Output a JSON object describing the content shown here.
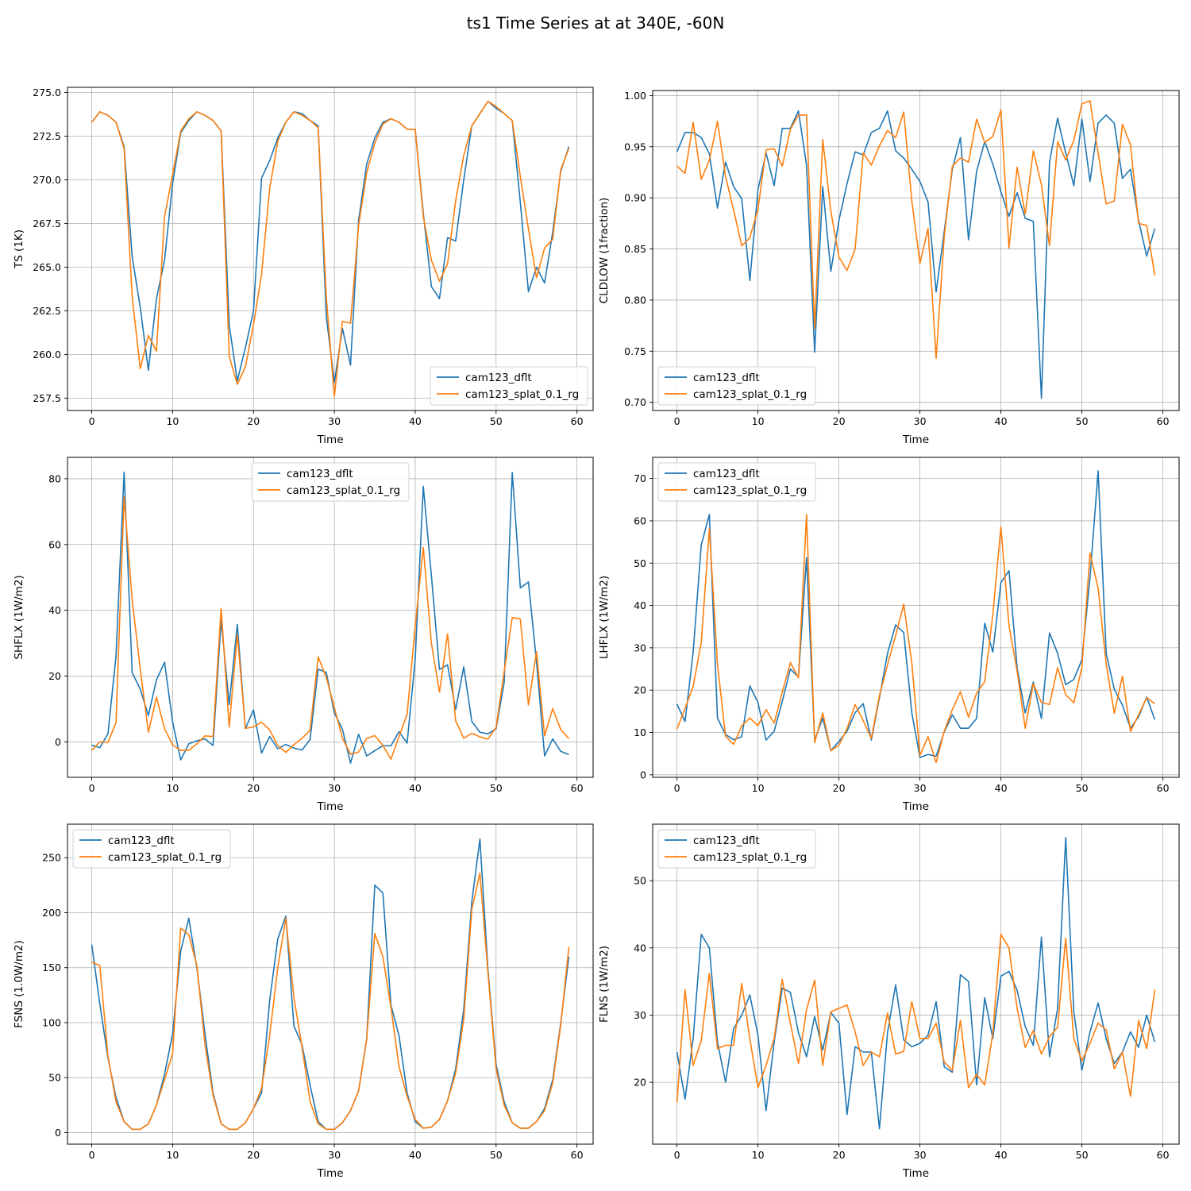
{
  "title": "ts1 Time Series at at 340E, -60N",
  "colors": {
    "series1": "#1f77b4",
    "series2": "#ff7f0e",
    "grid": "#b0b0b0"
  },
  "chart_data": [
    {
      "type": "line",
      "xlabel": "Time",
      "ylabel": "TS (1K)",
      "xlim": [
        -3,
        62
      ],
      "ylim": [
        256.8,
        275.3
      ],
      "xticks": [
        0,
        10,
        20,
        30,
        40,
        50,
        60
      ],
      "yticks": [
        257.5,
        260.0,
        262.5,
        265.0,
        267.5,
        270.0,
        272.5,
        275.0
      ],
      "ytick_labels": [
        "257.5",
        "260.0",
        "262.5",
        "265.0",
        "267.5",
        "270.0",
        "272.5",
        "275.0"
      ],
      "grid": true,
      "legend": "lower right",
      "series": [
        {
          "name": "cam123_dflt",
          "color": "#1f77b4",
          "values": [
            273.3,
            273.9,
            273.7,
            273.3,
            271.9,
            265.6,
            262.7,
            259.1,
            263.2,
            265.4,
            269.8,
            272.7,
            273.4,
            273.9,
            273.7,
            273.4,
            272.8,
            261.7,
            258.5,
            260.4,
            262.5,
            270.1,
            271.1,
            272.4,
            273.3,
            273.9,
            273.8,
            273.4,
            273.1,
            262.2,
            258.4,
            261.5,
            259.4,
            267.7,
            270.9,
            272.4,
            273.3,
            273.5,
            273.3,
            272.9,
            272.9,
            268.1,
            263.9,
            263.2,
            266.7,
            266.5,
            270.0,
            273.1,
            273.8,
            274.5,
            274.1,
            273.8,
            273.4,
            268.7,
            263.6,
            265.0,
            264.1,
            267.0,
            270.5,
            271.9
          ]
        },
        {
          "name": "cam123_splat_0.1_rg",
          "color": "#ff7f0e",
          "values": [
            273.3,
            273.9,
            273.7,
            273.3,
            271.8,
            263.3,
            259.2,
            261.1,
            260.2,
            267.9,
            270.3,
            272.8,
            273.5,
            273.9,
            273.7,
            273.4,
            272.8,
            259.9,
            258.3,
            259.3,
            261.7,
            264.6,
            269.5,
            272.2,
            273.3,
            273.9,
            273.7,
            273.4,
            273.0,
            263.3,
            257.6,
            261.9,
            261.8,
            267.4,
            270.4,
            272.1,
            273.2,
            273.5,
            273.3,
            272.9,
            272.9,
            267.9,
            265.4,
            264.2,
            265.2,
            268.8,
            271.4,
            273.1,
            273.8,
            274.5,
            274.2,
            273.8,
            273.4,
            270.2,
            267.2,
            264.4,
            266.1,
            266.6,
            270.6,
            271.8
          ]
        }
      ]
    },
    {
      "type": "line",
      "xlabel": "Time",
      "ylabel": "CLDLOW (1fraction)",
      "xlim": [
        -3,
        62
      ],
      "ylim": [
        0.692,
        1.005
      ],
      "xticks": [
        0,
        10,
        20,
        30,
        40,
        50,
        60
      ],
      "yticks": [
        0.7,
        0.75,
        0.8,
        0.85,
        0.9,
        0.95,
        1.0
      ],
      "ytick_labels": [
        "0.70",
        "0.75",
        "0.80",
        "0.85",
        "0.90",
        "0.95",
        "1.00"
      ],
      "grid": true,
      "legend": "lower left",
      "series": [
        {
          "name": "cam123_dflt",
          "color": "#1f77b4",
          "values": [
            0.945,
            0.964,
            0.964,
            0.959,
            0.943,
            0.89,
            0.935,
            0.911,
            0.899,
            0.819,
            0.908,
            0.944,
            0.912,
            0.968,
            0.968,
            0.985,
            0.932,
            0.749,
            0.911,
            0.828,
            0.878,
            0.914,
            0.945,
            0.942,
            0.964,
            0.968,
            0.985,
            0.946,
            0.939,
            0.928,
            0.916,
            0.896,
            0.808,
            0.867,
            0.928,
            0.959,
            0.859,
            0.926,
            0.955,
            0.933,
            0.906,
            0.882,
            0.905,
            0.88,
            0.877,
            0.704,
            0.935,
            0.978,
            0.944,
            0.912,
            0.977,
            0.916,
            0.973,
            0.981,
            0.973,
            0.919,
            0.928,
            0.878,
            0.843,
            0.87
          ]
        },
        {
          "name": "cam123_splat_0.1_rg",
          "color": "#ff7f0e",
          "values": [
            0.931,
            0.924,
            0.974,
            0.918,
            0.937,
            0.975,
            0.921,
            0.888,
            0.853,
            0.861,
            0.889,
            0.947,
            0.948,
            0.931,
            0.967,
            0.981,
            0.981,
            0.772,
            0.957,
            0.887,
            0.842,
            0.829,
            0.85,
            0.944,
            0.932,
            0.951,
            0.966,
            0.959,
            0.984,
            0.897,
            0.836,
            0.87,
            0.743,
            0.862,
            0.931,
            0.939,
            0.935,
            0.977,
            0.954,
            0.96,
            0.986,
            0.851,
            0.93,
            0.884,
            0.946,
            0.913,
            0.853,
            0.955,
            0.937,
            0.956,
            0.992,
            0.995,
            0.944,
            0.894,
            0.897,
            0.972,
            0.952,
            0.875,
            0.873,
            0.824
          ]
        }
      ]
    },
    {
      "type": "line",
      "xlabel": "Time",
      "ylabel": "SHFLX (1W/m2)",
      "xlim": [
        -3,
        62
      ],
      "ylim": [
        -10.8,
        86.5
      ],
      "xticks": [
        0,
        10,
        20,
        30,
        40,
        50,
        60
      ],
      "yticks": [
        0,
        20,
        40,
        60,
        80
      ],
      "ytick_labels": [
        "0",
        "20",
        "40",
        "60",
        "80"
      ],
      "grid": true,
      "legend": "upper center",
      "series": [
        {
          "name": "cam123_dflt",
          "color": "#1f77b4",
          "values": [
            -1.0,
            -1.8,
            2.4,
            26.0,
            82.0,
            21.0,
            16.0,
            8.0,
            18.8,
            24.2,
            6.0,
            -5.5,
            -0.6,
            0.3,
            0.9,
            -1.1,
            37.0,
            11.3,
            35.7,
            4.0,
            9.7,
            -3.4,
            1.6,
            -2.1,
            -0.8,
            -1.9,
            -2.5,
            0.7,
            22.1,
            21.1,
            8.8,
            3.8,
            -6.5,
            2.3,
            -4.3,
            -2.7,
            -1.2,
            -1.2,
            3.1,
            -0.4,
            25.1,
            77.7,
            50.6,
            22.0,
            23.4,
            9.8,
            22.8,
            6.2,
            2.9,
            2.4,
            4.0,
            18.0,
            81.9,
            46.8,
            48.6,
            24.3,
            -4.3,
            0.9,
            -2.9,
            -3.9
          ]
        },
        {
          "name": "cam123_splat_0.1_rg",
          "color": "#ff7f0e",
          "values": [
            -2.6,
            0.0,
            -0.2,
            5.8,
            74.5,
            43.1,
            22.1,
            2.9,
            13.6,
            4.0,
            -0.9,
            -2.6,
            -2.6,
            -0.6,
            1.8,
            1.6,
            40.6,
            4.5,
            32.6,
            4.1,
            4.5,
            6.0,
            3.6,
            -1.1,
            -3.2,
            -0.9,
            1.1,
            3.5,
            25.8,
            19.6,
            10.4,
            1.1,
            -3.8,
            -3.1,
            1.0,
            1.9,
            -1.1,
            -5.3,
            1.6,
            8.4,
            35.2,
            59.1,
            30.0,
            15.1,
            32.8,
            6.4,
            1.1,
            2.6,
            1.5,
            0.8,
            4.4,
            21.3,
            37.8,
            37.3,
            11.2,
            27.4,
            1.8,
            10.1,
            3.7,
            1.0
          ]
        }
      ]
    },
    {
      "type": "line",
      "xlabel": "Time",
      "ylabel": "LHFLX (1W/m2)",
      "xlim": [
        -3,
        62
      ],
      "ylim": [
        -0.6,
        75.0
      ],
      "xticks": [
        0,
        10,
        20,
        30,
        40,
        50,
        60
      ],
      "yticks": [
        0,
        10,
        20,
        30,
        40,
        50,
        60,
        70
      ],
      "ytick_labels": [
        "0",
        "10",
        "20",
        "30",
        "40",
        "50",
        "60",
        "70"
      ],
      "grid": true,
      "legend": "upper left",
      "series": [
        {
          "name": "cam123_dflt",
          "color": "#1f77b4",
          "values": [
            16.7,
            12.6,
            29.0,
            54.3,
            61.5,
            13.4,
            9.5,
            8.3,
            9.0,
            21.0,
            17.1,
            8.2,
            10.3,
            17.3,
            25.0,
            23.1,
            51.3,
            8.2,
            13.4,
            5.7,
            7.9,
            10.3,
            14.7,
            16.8,
            8.2,
            18.2,
            28.7,
            35.4,
            33.6,
            14.6,
            4.1,
            4.8,
            4.4,
            10.1,
            14.2,
            11.0,
            11.0,
            13.3,
            35.8,
            29.0,
            45.4,
            48.2,
            25.3,
            14.6,
            21.9,
            13.3,
            33.5,
            28.7,
            21.3,
            22.5,
            27.2,
            46.6,
            71.8,
            28.7,
            20.2,
            16.5,
            11.0,
            13.7,
            18.4,
            13.0
          ]
        },
        {
          "name": "cam123_splat_0.1_rg",
          "color": "#ff7f0e",
          "values": [
            10.8,
            15.7,
            20.9,
            31.3,
            58.1,
            26.2,
            9.1,
            7.2,
            11.6,
            13.4,
            11.6,
            15.4,
            12.2,
            19.5,
            26.5,
            22.9,
            61.5,
            7.6,
            14.6,
            5.7,
            7.0,
            10.9,
            16.6,
            12.8,
            8.6,
            18.7,
            26.0,
            32.9,
            40.3,
            26.4,
            4.6,
            9.0,
            2.9,
            10.3,
            15.4,
            19.6,
            13.6,
            19.3,
            22.0,
            37.8,
            58.6,
            35.2,
            24.5,
            11.0,
            21.5,
            17.1,
            16.6,
            25.3,
            18.9,
            17.0,
            25.4,
            52.4,
            44.1,
            26.2,
            14.5,
            23.3,
            10.2,
            14.2,
            18.2,
            16.8
          ]
        }
      ]
    },
    {
      "type": "line",
      "xlabel": "Time",
      "ylabel": "FSNS (1.0W/m2)",
      "xlim": [
        -3,
        62
      ],
      "ylim": [
        -10.5,
        280.5
      ],
      "xticks": [
        0,
        10,
        20,
        30,
        40,
        50,
        60
      ],
      "yticks": [
        0,
        50,
        100,
        150,
        200,
        250
      ],
      "ytick_labels": [
        "0",
        "50",
        "100",
        "150",
        "200",
        "250"
      ],
      "grid": true,
      "legend": "upper left",
      "series": [
        {
          "name": "cam123_dflt",
          "color": "#1f77b4",
          "values": [
            171,
            117,
            68,
            32,
            10,
            3,
            3,
            8,
            25,
            53,
            90,
            165,
            195,
            150,
            90,
            36,
            8,
            3,
            3,
            9,
            22,
            36,
            120,
            176,
            197,
            97,
            80,
            43,
            10,
            3,
            3,
            9,
            20,
            38,
            85,
            225,
            218,
            116,
            88,
            36,
            10,
            4,
            5,
            12,
            29,
            58,
            112,
            210,
            267,
            148,
            62,
            28,
            9,
            4,
            4,
            10,
            22,
            48,
            100,
            160
          ]
        },
        {
          "name": "cam123_splat_0.1_rg",
          "color": "#ff7f0e",
          "values": [
            155,
            152,
            70,
            28,
            10,
            3,
            3,
            8,
            25,
            48,
            72,
            186,
            180,
            152,
            80,
            34,
            8,
            3,
            3,
            9,
            22,
            40,
            88,
            150,
            195,
            123,
            78,
            28,
            8,
            3,
            3,
            9,
            20,
            38,
            85,
            181,
            160,
            114,
            60,
            33,
            12,
            4,
            5,
            12,
            29,
            54,
            103,
            203,
            236,
            145,
            58,
            25,
            9,
            4,
            4,
            10,
            20,
            45,
            98,
            169
          ]
        }
      ]
    },
    {
      "type": "line",
      "xlabel": "Time",
      "ylabel": "FLNS (1W/m2)",
      "xlim": [
        -3,
        62
      ],
      "ylim": [
        10.8,
        58.4
      ],
      "xticks": [
        0,
        10,
        20,
        30,
        40,
        50,
        60
      ],
      "yticks": [
        20,
        30,
        40,
        50
      ],
      "ytick_labels": [
        "20",
        "30",
        "40",
        "50"
      ],
      "grid": true,
      "legend": "upper left",
      "series": [
        {
          "name": "cam123_dflt",
          "color": "#1f77b4",
          "values": [
            24.5,
            17.5,
            26.5,
            42.0,
            40.0,
            26.0,
            20.0,
            28.0,
            30.0,
            33.0,
            27.0,
            15.8,
            26.0,
            34.0,
            33.4,
            27.4,
            23.8,
            29.8,
            24.8,
            30.4,
            28.8,
            15.2,
            25.3,
            24.5,
            24.5,
            13.1,
            27.4,
            34.5,
            26.3,
            25.3,
            25.8,
            27.0,
            32.0,
            22.3,
            21.5,
            36.0,
            35.0,
            19.6,
            32.6,
            26.5,
            35.8,
            36.5,
            33.7,
            28.3,
            25.5,
            41.6,
            23.8,
            31.0,
            56.4,
            30.5,
            21.8,
            27.5,
            31.8,
            26.5,
            22.8,
            24.5,
            27.5,
            25.2,
            30.0,
            26.0
          ]
        },
        {
          "name": "cam123_splat_0.1_rg",
          "color": "#ff7f0e",
          "values": [
            17.0,
            33.8,
            22.5,
            26.2,
            36.2,
            25.0,
            25.5,
            25.5,
            34.7,
            26.5,
            19.2,
            22.5,
            26.5,
            35.3,
            28.8,
            22.8,
            30.8,
            35.2,
            22.5,
            30.5,
            31.0,
            31.5,
            27.5,
            22.5,
            24.5,
            23.8,
            30.3,
            24.2,
            24.6,
            32.0,
            26.5,
            26.5,
            28.8,
            23.0,
            21.8,
            29.2,
            19.2,
            21.2,
            19.6,
            27.3,
            42.0,
            40.0,
            31.0,
            25.2,
            27.7,
            24.2,
            26.8,
            28.2,
            41.4,
            26.5,
            23.2,
            25.8,
            28.8,
            27.8,
            22.0,
            24.5,
            17.9,
            29.2,
            25.0,
            33.8
          ]
        }
      ]
    }
  ]
}
